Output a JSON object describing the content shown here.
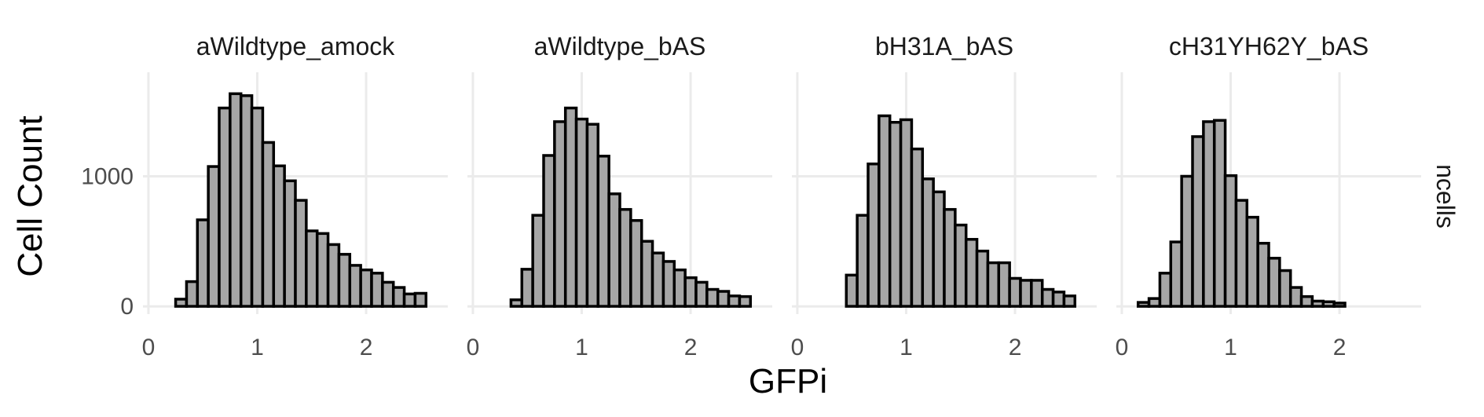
{
  "chart_data": {
    "type": "bar",
    "xlabel": "GFPi",
    "ylabel": "Cell Count",
    "strip_label": "ncells",
    "xlim": [
      -0.05,
      2.75
    ],
    "ylim": [
      -60,
      1800
    ],
    "x_ticks": [
      0,
      1,
      2
    ],
    "y_ticks": [
      0,
      1000
    ],
    "bin_width": 0.1,
    "colors": {
      "bar_fill": "#a6a6a6",
      "bar_outline": "#000000",
      "grid": "#ebebeb"
    },
    "grid": true,
    "legend": "none",
    "panels": [
      {
        "title": "aWildtype_amock",
        "bin_centers": [
          0.3,
          0.4,
          0.5,
          0.6,
          0.7,
          0.8,
          0.9,
          1.0,
          1.1,
          1.2,
          1.3,
          1.4,
          1.5,
          1.6,
          1.7,
          1.8,
          1.9,
          2.0,
          2.1,
          2.2,
          2.3,
          2.4,
          2.5
        ],
        "counts": [
          55,
          190,
          665,
          1075,
          1525,
          1635,
          1620,
          1525,
          1260,
          1080,
          965,
          815,
          580,
          560,
          475,
          400,
          315,
          280,
          255,
          185,
          145,
          95,
          100
        ]
      },
      {
        "title": "aWildtype_bAS",
        "bin_centers": [
          0.4,
          0.5,
          0.6,
          0.7,
          0.8,
          0.9,
          1.0,
          1.1,
          1.2,
          1.3,
          1.4,
          1.5,
          1.6,
          1.7,
          1.8,
          1.9,
          2.0,
          2.1,
          2.2,
          2.3,
          2.4,
          2.5
        ],
        "counts": [
          50,
          285,
          700,
          1160,
          1420,
          1525,
          1440,
          1400,
          1155,
          865,
          745,
          660,
          500,
          410,
          345,
          280,
          220,
          185,
          130,
          115,
          80,
          75
        ]
      },
      {
        "title": "bH31A_bAS",
        "bin_centers": [
          0.5,
          0.6,
          0.7,
          0.8,
          0.9,
          1.0,
          1.1,
          1.2,
          1.3,
          1.4,
          1.5,
          1.6,
          1.7,
          1.8,
          1.9,
          2.0,
          2.1,
          2.2,
          2.3,
          2.4,
          2.5
        ],
        "counts": [
          240,
          700,
          1095,
          1465,
          1415,
          1435,
          1210,
          980,
          880,
          745,
          625,
          515,
          425,
          335,
          335,
          215,
          200,
          200,
          130,
          110,
          80
        ]
      },
      {
        "title": "cH31YH62Y_bAS",
        "bin_centers": [
          0.2,
          0.3,
          0.4,
          0.5,
          0.6,
          0.7,
          0.8,
          0.9,
          1.0,
          1.1,
          1.2,
          1.3,
          1.4,
          1.5,
          1.6,
          1.7,
          1.8,
          1.9,
          2.0
        ],
        "counts": [
          30,
          60,
          255,
          495,
          1000,
          1305,
          1420,
          1430,
          1005,
          815,
          685,
          485,
          370,
          275,
          145,
          75,
          40,
          35,
          25
        ]
      }
    ]
  }
}
